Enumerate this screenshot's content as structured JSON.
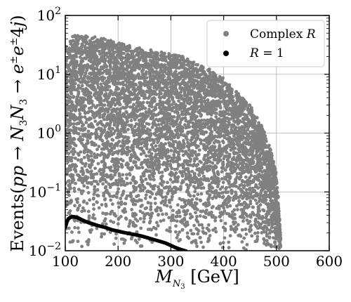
{
  "chart_data": {
    "type": "scatter",
    "xlabel": "M_{N_3} [GeV]",
    "ylabel": "Events(pp → N_3N_3 → e^{±}e^{±}4j)",
    "xlim": [
      100,
      600
    ],
    "ylim": [
      0.01,
      100
    ],
    "yscale": "log",
    "grid": true,
    "legend_position": "top-right",
    "x_ticks": [
      100,
      200,
      300,
      400,
      500,
      600
    ],
    "x_tick_labels": [
      "100",
      "200",
      "300",
      "400",
      "500",
      "600"
    ],
    "y_ticks": [
      0.01,
      0.1,
      1,
      10,
      100
    ],
    "y_tick_labels": [
      {
        "base": "10",
        "exp": "−2"
      },
      {
        "base": "10",
        "exp": "−1"
      },
      {
        "base": "10",
        "exp": "0"
      },
      {
        "base": "10",
        "exp": "1"
      },
      {
        "base": "10",
        "exp": "2"
      }
    ],
    "series": [
      {
        "name": "Complex R",
        "color": "#808080",
        "marker": "circle",
        "envelope_x": [
          100,
          115,
          130,
          150,
          175,
          200,
          225,
          250,
          275,
          300,
          325,
          350,
          375,
          400,
          425,
          450,
          475,
          490,
          500,
          505,
          508
        ],
        "envelope_upper": [
          30,
          45,
          50,
          45,
          40,
          35,
          30,
          27,
          25,
          22,
          20,
          15,
          12,
          8.5,
          5,
          3,
          1.2,
          0.5,
          0.2,
          0.06,
          0.015
        ],
        "lower_bound": 0.01,
        "n_points": 6000
      },
      {
        "name": "R = 1",
        "color": "#000000",
        "marker": "circle",
        "x": [
          100,
          103,
          106,
          110,
          115,
          120,
          125,
          130,
          140,
          150,
          160,
          175,
          190,
          200,
          210,
          225,
          240,
          250,
          260,
          275,
          290,
          300,
          310,
          320,
          330
        ],
        "y": [
          0.025,
          0.031,
          0.035,
          0.037,
          0.038,
          0.037,
          0.036,
          0.034,
          0.031,
          0.029,
          0.027,
          0.025,
          0.0225,
          0.0215,
          0.0205,
          0.0193,
          0.0182,
          0.0172,
          0.0162,
          0.0148,
          0.0135,
          0.0123,
          0.0112,
          0.0104,
          0.0098
        ]
      }
    ]
  }
}
